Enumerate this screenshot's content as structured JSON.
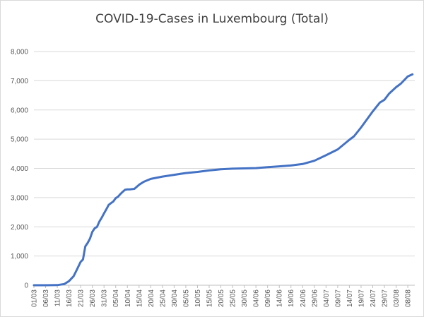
{
  "chart_data": {
    "type": "line",
    "title": "COVID-19-Cases in Luxembourg (Total)",
    "xlabel": "",
    "ylabel": "",
    "ylim": [
      0,
      8000
    ],
    "yticks": [
      "0",
      "1,000",
      "2,000",
      "3,000",
      "4,000",
      "5,000",
      "6,000",
      "7,000",
      "8,000"
    ],
    "xticks": [
      "01/03",
      "06/03",
      "11/03",
      "16/03",
      "21/03",
      "26/03",
      "31/03",
      "05/04",
      "10/04",
      "15/04",
      "20/04",
      "25/04",
      "30/04",
      "05/05",
      "10/05",
      "15/05",
      "20/05",
      "25/05",
      "30/05",
      "04/06",
      "09/06",
      "14/06",
      "19/06",
      "24/06",
      "29/06",
      "04/07",
      "09/07",
      "14/07",
      "19/07",
      "24/07",
      "29/07",
      "03/08",
      "08/08"
    ],
    "grid": true,
    "line_color": "#4472c4",
    "series": [
      {
        "x": [
          "01/03",
          "06/03",
          "11/03",
          "14/03",
          "16/03",
          "18/03",
          "19/03",
          "21/03",
          "22/03",
          "23/03",
          "24/03",
          "25/03",
          "26/03",
          "27/03",
          "28/03",
          "29/03",
          "30/03",
          "31/03",
          "01/04",
          "02/04",
          "03/04",
          "04/04",
          "05/04",
          "06/04",
          "07/04",
          "08/04",
          "09/04",
          "10/04",
          "11/04",
          "13/04",
          "15/04",
          "17/04",
          "20/04",
          "25/04",
          "30/04",
          "05/05",
          "10/05",
          "15/05",
          "20/05",
          "25/05",
          "30/05",
          "04/06",
          "09/06",
          "14/06",
          "19/06",
          "24/06",
          "29/06",
          "04/07",
          "09/07",
          "14/07",
          "16/07",
          "19/07",
          "24/07",
          "27/07",
          "29/07",
          "31/07",
          "03/08",
          "05/08",
          "08/08",
          "10/08"
        ],
        "y": [
          0,
          0,
          5,
          40,
          140,
          310,
          470,
          800,
          880,
          1330,
          1450,
          1600,
          1830,
          1950,
          2000,
          2180,
          2310,
          2460,
          2600,
          2750,
          2810,
          2870,
          2980,
          3030,
          3120,
          3200,
          3270,
          3280,
          3280,
          3300,
          3440,
          3540,
          3640,
          3720,
          3780,
          3840,
          3880,
          3930,
          3970,
          3990,
          4000,
          4010,
          4040,
          4070,
          4100,
          4150,
          4260,
          4450,
          4650,
          4980,
          5100,
          5400,
          5950,
          6250,
          6350,
          6560,
          6780,
          6900,
          7150,
          7220
        ]
      }
    ]
  }
}
